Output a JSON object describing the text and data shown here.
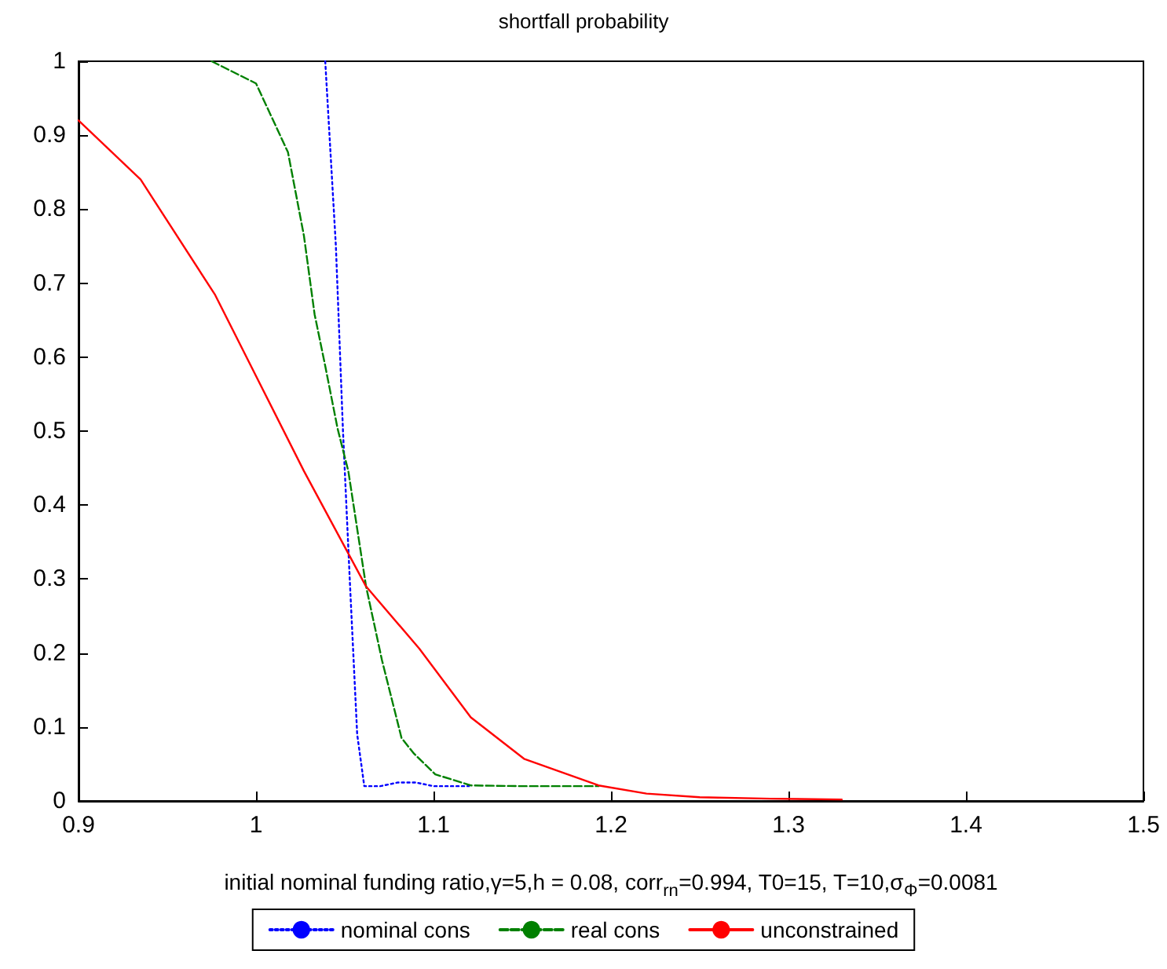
{
  "chart_data": {
    "type": "line",
    "title": "shortfall probability",
    "xlabel": "initial nominal funding ratio,γ=5,h = 0.08, corr$_{rn}$=0.994, T0=15, T=10,σ$_{Φ}$=0.0081",
    "xlim": [
      0.9,
      1.5
    ],
    "xticks": [
      0.9,
      1,
      1.1,
      1.2,
      1.3,
      1.4,
      1.5
    ],
    "ylim": [
      0,
      1
    ],
    "yticks": [
      0,
      0.1,
      0.2,
      0.3,
      0.4,
      0.5,
      0.6,
      0.7,
      0.8,
      0.9,
      1
    ],
    "grid": false,
    "legend": "bottom",
    "marker": "none",
    "series": [
      {
        "name": "nominal cons",
        "color": "#0000ff",
        "line_style": "dotted",
        "x": [
          1.039,
          1.045,
          1.049,
          1.053,
          1.057,
          1.061,
          1.07,
          1.08,
          1.09,
          1.1,
          1.11,
          1.12
        ],
        "values": [
          1,
          0.75,
          0.5,
          0.29,
          0.09,
          0.02,
          0.02,
          0.025,
          0.025,
          0.02,
          0.02,
          0.02
        ]
      },
      {
        "name": "real cons",
        "color": "#008000",
        "line_style": "dashed",
        "x": [
          0.975,
          1.0,
          1.018,
          1.027,
          1.033,
          1.039,
          1.046,
          1.052,
          1.062,
          1.071,
          1.082,
          1.089,
          1.101,
          1.121,
          1.15,
          1.193
        ],
        "values": [
          1,
          0.97,
          0.877,
          0.764,
          0.658,
          0.588,
          0.503,
          0.446,
          0.29,
          0.19,
          0.085,
          0.064,
          0.036,
          0.021,
          0.02,
          0.02
        ]
      },
      {
        "name": "unconstrained",
        "color": "#ff0000",
        "line_style": "solid",
        "x": [
          0.9,
          0.935,
          0.977,
          1.027,
          1.062,
          1.092,
          1.121,
          1.151,
          1.193,
          1.22,
          1.25,
          1.29,
          1.33
        ],
        "values": [
          0.92,
          0.84,
          0.684,
          0.446,
          0.29,
          0.206,
          0.113,
          0.057,
          0.021,
          0.01,
          0.005,
          0.003,
          0.002
        ]
      }
    ]
  }
}
